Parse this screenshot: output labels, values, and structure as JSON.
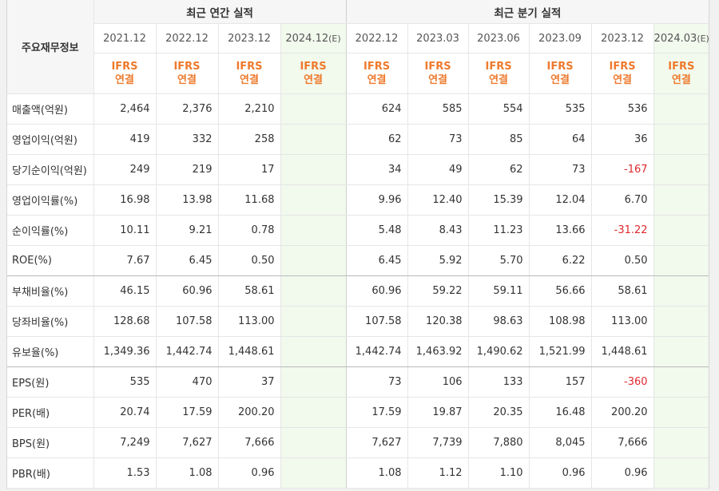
{
  "table": {
    "corner_label": "주요재무정보",
    "groups": {
      "annual": "최근 연간 실적",
      "quarterly": "최근 분기 실적"
    },
    "periods": [
      {
        "label": "2021.12",
        "tag": "",
        "ifrs1": "IFRS",
        "ifrs2": "연결",
        "estimate": false
      },
      {
        "label": "2022.12",
        "tag": "",
        "ifrs1": "IFRS",
        "ifrs2": "연결",
        "estimate": false
      },
      {
        "label": "2023.12",
        "tag": "",
        "ifrs1": "IFRS",
        "ifrs2": "연결",
        "estimate": false
      },
      {
        "label": "2024.12",
        "tag": "(E)",
        "ifrs1": "IFRS",
        "ifrs2": "연결",
        "estimate": true
      },
      {
        "label": "2022.12",
        "tag": "",
        "ifrs1": "IFRS",
        "ifrs2": "연결",
        "estimate": false
      },
      {
        "label": "2023.03",
        "tag": "",
        "ifrs1": "IFRS",
        "ifrs2": "연결",
        "estimate": false
      },
      {
        "label": "2023.06",
        "tag": "",
        "ifrs1": "IFRS",
        "ifrs2": "연결",
        "estimate": false
      },
      {
        "label": "2023.09",
        "tag": "",
        "ifrs1": "IFRS",
        "ifrs2": "연결",
        "estimate": false
      },
      {
        "label": "2023.12",
        "tag": "",
        "ifrs1": "IFRS",
        "ifrs2": "연결",
        "estimate": false
      },
      {
        "label": "2024.03",
        "tag": "(E)",
        "ifrs1": "IFRS",
        "ifrs2": "연결",
        "estimate": true
      }
    ],
    "rows": [
      {
        "label": "매출액(억원)",
        "values": [
          "2,464",
          "2,376",
          "2,210",
          "",
          "624",
          "585",
          "554",
          "535",
          "536",
          ""
        ]
      },
      {
        "label": "영업이익(억원)",
        "values": [
          "419",
          "332",
          "258",
          "",
          "62",
          "73",
          "85",
          "64",
          "36",
          ""
        ]
      },
      {
        "label": "당기순이익(억원)",
        "values": [
          "249",
          "219",
          "17",
          "",
          "34",
          "49",
          "62",
          "73",
          "-167",
          ""
        ]
      },
      {
        "label": "영업이익률(%)",
        "values": [
          "16.98",
          "13.98",
          "11.68",
          "",
          "9.96",
          "12.40",
          "15.39",
          "12.04",
          "6.70",
          ""
        ]
      },
      {
        "label": "순이익률(%)",
        "values": [
          "10.11",
          "9.21",
          "0.78",
          "",
          "5.48",
          "8.43",
          "11.23",
          "13.66",
          "-31.22",
          ""
        ]
      },
      {
        "label": "ROE(%)",
        "values": [
          "7.67",
          "6.45",
          "0.50",
          "",
          "6.45",
          "5.92",
          "5.70",
          "6.22",
          "0.50",
          ""
        ]
      },
      {
        "label": "부채비율(%)",
        "values": [
          "46.15",
          "60.96",
          "58.61",
          "",
          "60.96",
          "59.22",
          "59.11",
          "56.66",
          "58.61",
          ""
        ]
      },
      {
        "label": "당좌비율(%)",
        "values": [
          "128.68",
          "107.58",
          "113.00",
          "",
          "107.58",
          "120.38",
          "98.63",
          "108.98",
          "113.00",
          ""
        ]
      },
      {
        "label": "유보율(%)",
        "values": [
          "1,349.36",
          "1,442.74",
          "1,448.61",
          "",
          "1,442.74",
          "1,463.92",
          "1,490.62",
          "1,521.99",
          "1,448.61",
          ""
        ]
      },
      {
        "label": "EPS(원)",
        "values": [
          "535",
          "470",
          "37",
          "",
          "73",
          "106",
          "133",
          "157",
          "-360",
          ""
        ]
      },
      {
        "label": "PER(배)",
        "values": [
          "20.74",
          "17.59",
          "200.20",
          "",
          "17.59",
          "19.87",
          "20.35",
          "16.48",
          "200.20",
          ""
        ]
      },
      {
        "label": "BPS(원)",
        "values": [
          "7,249",
          "7,627",
          "7,666",
          "",
          "7,627",
          "7,739",
          "7,880",
          "8,045",
          "7,666",
          ""
        ]
      },
      {
        "label": "PBR(배)",
        "values": [
          "1.53",
          "1.08",
          "0.96",
          "",
          "1.08",
          "1.12",
          "1.10",
          "0.96",
          "0.96",
          ""
        ]
      }
    ],
    "colors": {
      "ifrs": "#ee7a2d",
      "negative": "#e0282e",
      "estimate_bg": "#f2f9ed"
    }
  }
}
